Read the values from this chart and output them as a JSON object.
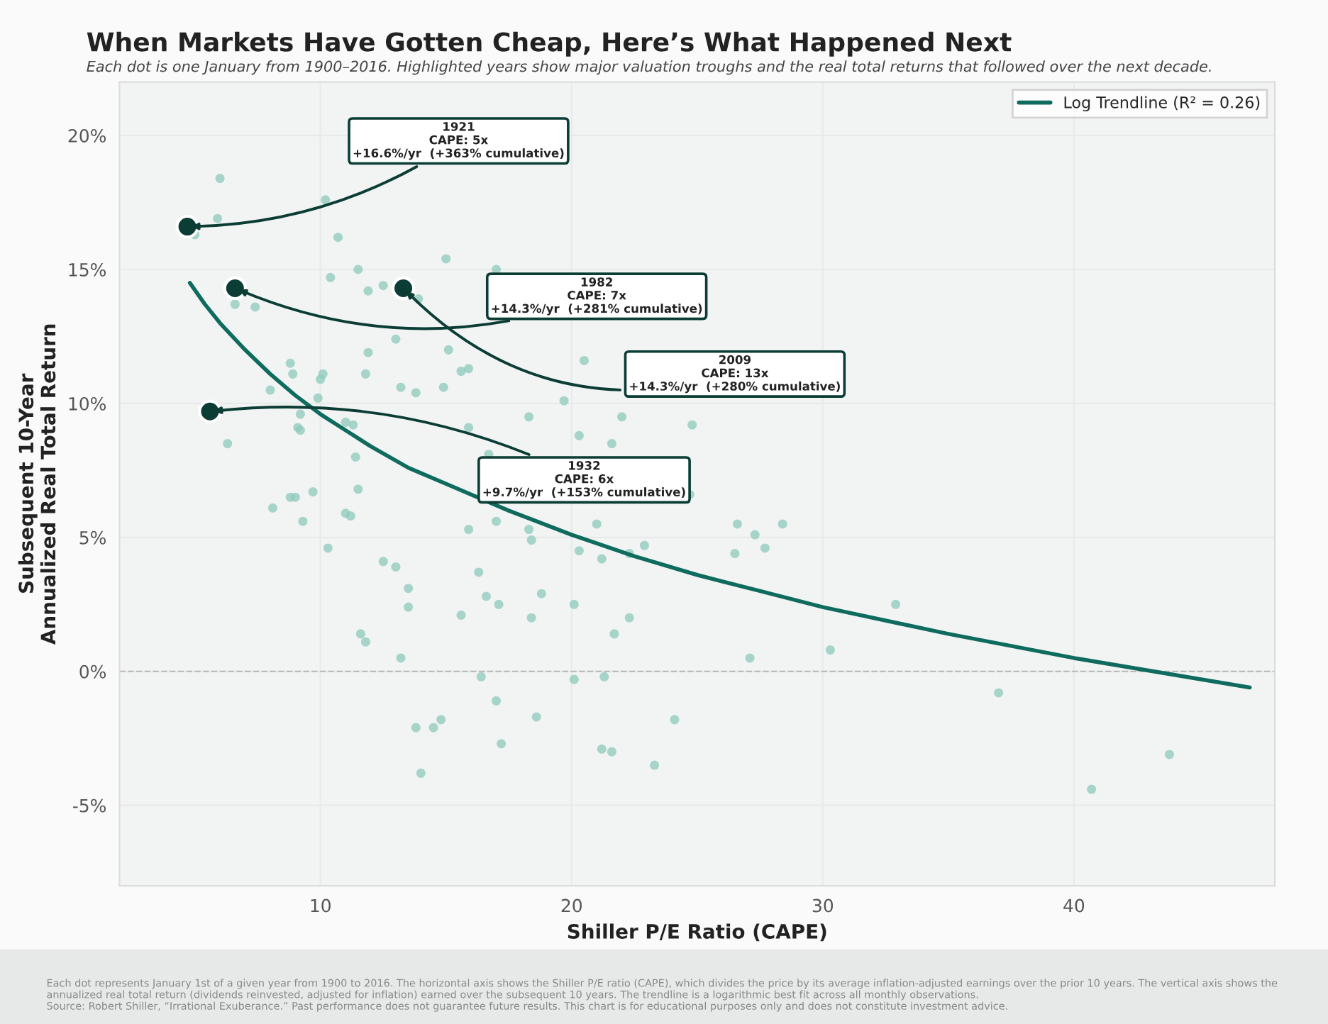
{
  "chart_data": {
    "type": "scatter",
    "title": "When Markets Have Gotten Cheap, Here’s What Happened Next",
    "subtitle": "Each dot is one January from 1900–2016. Highlighted years show major valuation troughs and the real total returns that followed over the next decade.",
    "xlabel": "Shiller P/E Ratio (CAPE)",
    "ylabel": "Subsequent 10-Year\nAnnualized Real Total Return",
    "xlim": [
      2,
      48
    ],
    "xticks": [
      10,
      20,
      30,
      40
    ],
    "ylim": [
      -8,
      22
    ],
    "yticks": [
      {
        "value": -5,
        "label": "-5%"
      },
      {
        "value": 0,
        "label": "0%"
      },
      {
        "value": 5,
        "label": "5%"
      },
      {
        "value": 10,
        "label": "10%"
      },
      {
        "value": 15,
        "label": "15%"
      },
      {
        "value": 20,
        "label": "20%"
      }
    ],
    "grid": true,
    "legend": "top right",
    "marker": "circle",
    "series": [
      {
        "color": "#8ec9bb",
        "x": [
          6.0,
          5.9,
          5.0,
          10.2,
          10.7,
          11.5,
          10.4,
          11.9,
          12.5,
          15.0,
          17.0,
          13.9,
          6.6,
          7.4,
          13.0,
          15.1,
          11.9,
          15.9,
          15.6,
          20.5,
          8.8,
          8.9,
          10.1,
          10.0,
          11.8,
          13.2,
          13.8,
          14.9,
          8.0,
          9.9,
          19.7,
          9.2,
          9.1,
          9.2,
          11.0,
          11.3,
          18.3,
          22.0,
          20.3,
          21.6,
          15.9,
          24.8,
          6.3,
          11.4,
          16.7,
          11.5,
          8.1,
          8.8,
          9.0,
          9.7,
          9.3,
          11.0,
          11.2,
          24.7,
          17.0,
          15.9,
          21.0,
          26.6,
          27.3,
          27.7,
          26.5,
          28.4,
          18.3,
          18.4,
          20.3,
          21.2,
          22.3,
          22.9,
          10.3,
          12.5,
          13.0,
          13.5,
          13.5,
          16.3,
          16.6,
          17.1,
          18.8,
          18.4,
          15.6,
          20.1,
          22.3,
          11.6,
          11.8,
          21.7,
          32.9,
          30.3,
          27.1,
          13.2,
          16.4,
          20.1,
          21.3,
          37.0,
          17.0,
          18.6,
          14.8,
          14.5,
          13.8,
          24.1,
          17.2,
          21.2,
          21.6,
          23.3,
          14.0,
          43.8,
          40.7
        ],
        "values": [
          18.4,
          16.9,
          16.3,
          17.6,
          16.2,
          15.0,
          14.7,
          14.2,
          14.4,
          15.4,
          15.0,
          13.9,
          13.7,
          13.6,
          12.4,
          12.0,
          11.9,
          11.3,
          11.2,
          11.6,
          11.5,
          11.1,
          11.1,
          10.9,
          11.1,
          10.6,
          10.4,
          10.6,
          10.5,
          10.2,
          10.1,
          9.6,
          9.1,
          9.0,
          9.3,
          9.2,
          9.5,
          9.5,
          8.8,
          8.5,
          9.1,
          9.2,
          8.5,
          8.0,
          8.1,
          6.8,
          6.1,
          6.5,
          6.5,
          6.7,
          5.6,
          5.9,
          5.8,
          6.6,
          5.6,
          5.3,
          5.5,
          5.5,
          5.1,
          4.6,
          4.4,
          5.5,
          5.3,
          4.9,
          4.5,
          4.2,
          4.4,
          4.7,
          4.6,
          4.1,
          3.9,
          3.1,
          2.4,
          3.7,
          2.8,
          2.5,
          2.9,
          2.0,
          2.1,
          2.5,
          2.0,
          1.4,
          1.1,
          1.4,
          2.5,
          0.8,
          0.5,
          0.5,
          -0.2,
          -0.3,
          -0.2,
          -0.8,
          -1.1,
          -1.7,
          -1.8,
          -2.1,
          -2.1,
          -1.8,
          -2.7,
          -2.9,
          -3.0,
          -3.5,
          -3.8,
          -3.1,
          -4.4
        ]
      },
      {
        "type": "line",
        "name": "Log Trendline (R² = 0.26)",
        "color": "#0e6b5e",
        "marker": "none",
        "line_style": "solid",
        "x": [
          4.8,
          5.4,
          6,
          7,
          8,
          9,
          10,
          11,
          12,
          13.5,
          15,
          17.5,
          20,
          22.5,
          25,
          27.5,
          30,
          35,
          40,
          47
        ],
        "values": [
          14.5,
          13.7,
          13.0,
          12.0,
          11.1,
          10.3,
          9.6,
          9.0,
          8.4,
          7.6,
          7.0,
          6.0,
          5.1,
          4.3,
          3.6,
          3.0,
          2.4,
          1.4,
          0.5,
          -0.6
        ]
      },
      {
        "color": "#0b3d35",
        "x": [
          4.7,
          6.6,
          13.3,
          5.6
        ],
        "values": [
          16.6,
          14.3,
          14.3,
          9.7
        ]
      }
    ],
    "ref_lines": [
      {
        "axis": "y",
        "value": 0,
        "color": "#bbbbbb",
        "line_style": "dashed"
      }
    ],
    "annotations": [
      {
        "text": "1921\nCAPE: 5x\n+16.6%/yr  (+363% cumulative)",
        "x": 4.7,
        "y": 16.6
      },
      {
        "text": "1982\nCAPE: 7x\n+14.3%/yr  (+281% cumulative)",
        "x": 6.6,
        "y": 14.3
      },
      {
        "text": "2009\nCAPE: 13x\n+14.3%/yr  (+280% cumulative)",
        "x": 13.3,
        "y": 14.3
      },
      {
        "text": "1932\nCAPE: 6x\n+9.7%/yr  (+153% cumulative)",
        "x": 5.6,
        "y": 9.7
      },
      "Each dot represents January 1st of a given year from 1900 to 2016. The horizontal axis shows the Shiller P/E ratio (CAPE), which divides the price by its average inflation-adjusted earnings over the prior 10 years. The vertical axis shows the annualized real total return (dividends reinvested, adjusted for inflation) earned over the subsequent 10 years. The trendline is a logarithmic best fit across all monthly observations.",
      "Source: Robert Shiller, “Irrational Exuberance.” Past performance does not guarantee future results. This chart is for educational purposes only and does not constitute investment advice."
    ]
  }
}
